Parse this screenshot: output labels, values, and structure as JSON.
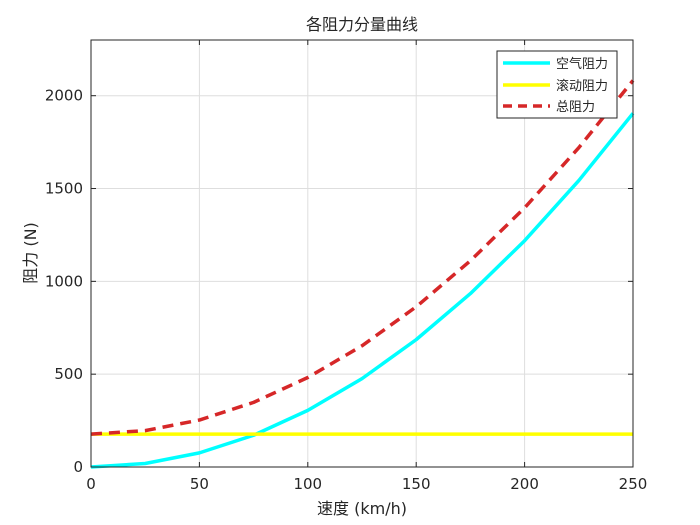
{
  "chart_data": {
    "type": "line",
    "title": "各阻力分量曲线",
    "xlabel": "速度 (km/h)",
    "ylabel": "阻力 (N)",
    "xlim": [
      0,
      250
    ],
    "ylim": [
      0,
      2300
    ],
    "xticks": [
      0,
      50,
      100,
      150,
      200,
      250
    ],
    "yticks": [
      0,
      500,
      1000,
      1500,
      2000
    ],
    "grid": true,
    "legend_position": "top-right",
    "x": [
      0,
      25,
      50,
      75,
      100,
      125,
      150,
      175,
      200,
      225,
      250
    ],
    "series": [
      {
        "name": "空气阻力",
        "color": "#00FFFF",
        "style": "solid",
        "values": [
          0,
          19,
          76,
          171,
          305,
          476,
          686,
          934,
          1219,
          1543,
          1905
        ]
      },
      {
        "name": "滚动阻力",
        "color": "#FFFF00",
        "style": "solid",
        "values": [
          177,
          177,
          177,
          177,
          177,
          177,
          177,
          177,
          177,
          177,
          177
        ]
      },
      {
        "name": "总阻力",
        "color": "#D62728",
        "style": "dashed",
        "values": [
          177,
          196,
          253,
          348,
          482,
          653,
          863,
          1111,
          1396,
          1720,
          2082
        ]
      }
    ]
  }
}
